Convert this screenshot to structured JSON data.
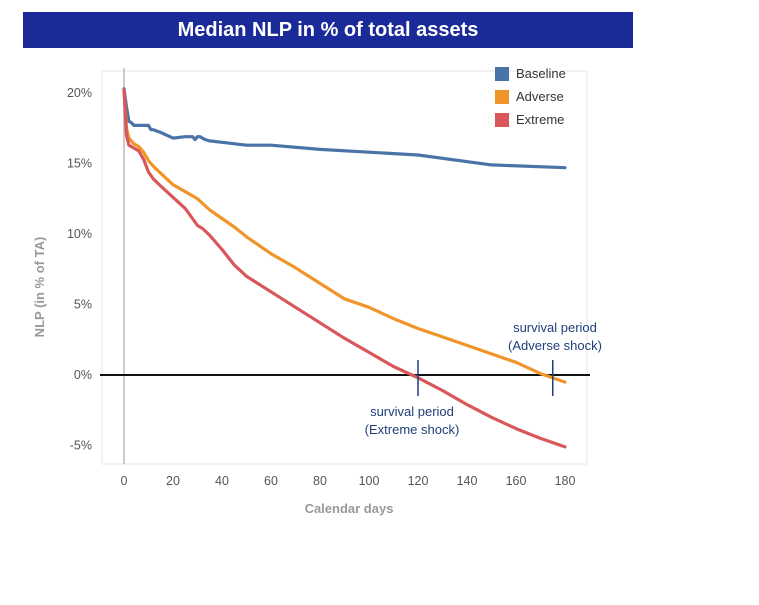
{
  "chart_data": {
    "type": "line",
    "title": "Median NLP in % of total assets",
    "xlabel": "Calendar days",
    "ylabel": "NLP (in % of TA)",
    "xlim": [
      -5,
      185
    ],
    "ylim": [
      -6.5,
      21.5
    ],
    "x_ticks": [
      0,
      20,
      40,
      60,
      80,
      100,
      120,
      140,
      160,
      180
    ],
    "y_ticks": [
      20,
      15,
      10,
      5,
      0,
      -5
    ],
    "y_tick_labels": [
      "20%",
      "15%",
      "10%",
      "5%",
      "0%",
      "-5%"
    ],
    "legend_position": "top-right",
    "series": [
      {
        "name": "Baseline",
        "color": "#4a74a8",
        "x": [
          0,
          1,
          2,
          3,
          4,
          6,
          8,
          10,
          11,
          12,
          15,
          20,
          25,
          28,
          29,
          30,
          31,
          33,
          35,
          40,
          50,
          55,
          60,
          80,
          100,
          120,
          150,
          180
        ],
        "y": [
          20.3,
          19.0,
          18.0,
          17.9,
          17.7,
          17.7,
          17.7,
          17.7,
          17.4,
          17.4,
          17.2,
          16.8,
          16.9,
          16.9,
          16.7,
          16.9,
          16.9,
          16.7,
          16.6,
          16.5,
          16.3,
          16.3,
          16.3,
          16.0,
          15.8,
          15.6,
          14.9,
          14.7
        ]
      },
      {
        "name": "Adverse",
        "color": "#f0952a",
        "x": [
          0,
          1,
          2,
          4,
          6,
          8,
          10,
          12,
          15,
          20,
          25,
          30,
          35,
          40,
          45,
          50,
          60,
          70,
          80,
          90,
          100,
          110,
          120,
          130,
          140,
          150,
          160,
          170,
          180
        ],
        "y": [
          20.2,
          17.5,
          16.8,
          16.4,
          16.2,
          15.8,
          15.2,
          14.8,
          14.3,
          13.5,
          13.0,
          12.5,
          11.7,
          11.1,
          10.5,
          9.8,
          8.6,
          7.6,
          6.5,
          5.4,
          4.8,
          4.0,
          3.3,
          2.7,
          2.1,
          1.5,
          0.9,
          0.1,
          -0.5
        ]
      },
      {
        "name": "Extreme",
        "color": "#d9575a",
        "x": [
          0,
          1,
          2,
          4,
          6,
          8,
          10,
          12,
          15,
          20,
          25,
          30,
          32,
          35,
          40,
          45,
          50,
          60,
          70,
          80,
          90,
          100,
          110,
          120,
          130,
          140,
          150,
          160,
          170,
          180
        ],
        "y": [
          20.2,
          17.0,
          16.3,
          16.1,
          15.9,
          15.3,
          14.4,
          13.9,
          13.4,
          12.6,
          11.8,
          10.6,
          10.4,
          9.9,
          8.9,
          7.8,
          7.0,
          5.9,
          4.8,
          3.7,
          2.6,
          1.6,
          0.6,
          -0.2,
          -1.1,
          -2.1,
          -3.0,
          -3.8,
          -4.5,
          -5.1
        ]
      }
    ],
    "annotations": [
      {
        "x": 120,
        "text_lines": [
          "survival period",
          "(Extreme shock)"
        ]
      },
      {
        "x": 175,
        "text_lines": [
          "survival period",
          "(Adverse shock)"
        ]
      }
    ]
  }
}
